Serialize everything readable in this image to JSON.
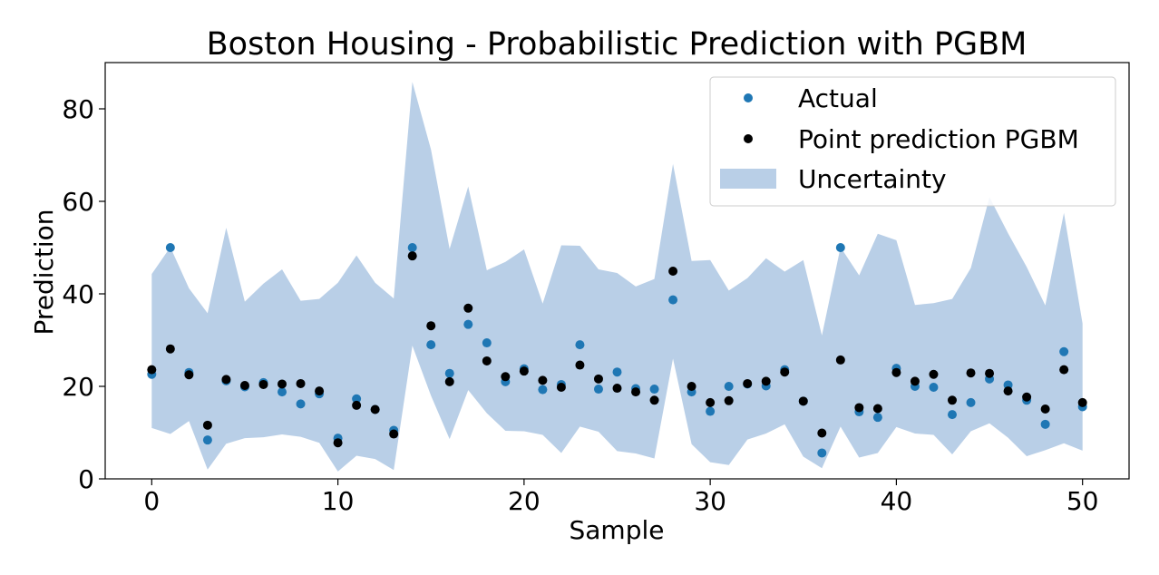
{
  "chart_data": {
    "type": "scatter",
    "title": "Boston Housing - Probabilistic Prediction with PGBM",
    "xlabel": "Sample",
    "ylabel": "Prediction",
    "xlim": [
      -2.5,
      52.5
    ],
    "ylim": [
      0,
      90
    ],
    "xticks": [
      0,
      10,
      20,
      30,
      40,
      50
    ],
    "yticks": [
      0,
      20,
      40,
      60,
      80
    ],
    "grid": false,
    "legend_position": "top-right",
    "x": [
      0,
      1,
      2,
      3,
      4,
      5,
      6,
      7,
      8,
      9,
      10,
      11,
      12,
      13,
      14,
      15,
      16,
      17,
      18,
      19,
      20,
      21,
      22,
      23,
      24,
      25,
      26,
      27,
      28,
      29,
      30,
      31,
      32,
      33,
      34,
      35,
      36,
      37,
      38,
      39,
      40,
      41,
      42,
      43,
      44,
      45,
      46,
      47,
      48,
      49,
      50
    ],
    "series": [
      {
        "name": "Uncertainty",
        "kind": "band",
        "color": "#b9cfe7",
        "lower": [
          11.0,
          9.7,
          12.5,
          2.0,
          7.6,
          8.8,
          9.0,
          9.6,
          9.1,
          7.8,
          1.6,
          5.0,
          4.3,
          1.9,
          28.8,
          18.0,
          8.6,
          19.2,
          14.2,
          10.4,
          10.3,
          9.5,
          5.6,
          11.3,
          10.2,
          6.0,
          5.5,
          4.4,
          26.0,
          7.5,
          3.6,
          3.0,
          8.5,
          9.8,
          11.8,
          4.8,
          2.3,
          11.3,
          4.6,
          5.6,
          11.2,
          9.8,
          9.5,
          5.3,
          10.3,
          12.0,
          8.9,
          4.9,
          6.2,
          7.7,
          6.1
        ],
        "upper": [
          44.3,
          50.1,
          41.2,
          35.8,
          54.3,
          38.3,
          42.2,
          45.3,
          38.5,
          38.9,
          42.4,
          48.3,
          42.4,
          39.0,
          85.8,
          71.2,
          49.7,
          63.2,
          45.1,
          46.9,
          49.6,
          37.9,
          50.5,
          50.4,
          45.3,
          44.5,
          41.6,
          43.2,
          68.1,
          47.1,
          47.3,
          40.7,
          43.4,
          47.7,
          44.8,
          47.3,
          31.0,
          50.1,
          44.0,
          53.0,
          51.6,
          37.6,
          38.0,
          38.9,
          45.6,
          60.9,
          53.1,
          45.8,
          37.5,
          57.5,
          33.6
        ]
      },
      {
        "name": "Actual",
        "kind": "points",
        "color": "#1f77b4",
        "values": [
          22.6,
          50.0,
          23.0,
          8.4,
          21.2,
          19.9,
          20.8,
          18.8,
          16.2,
          18.4,
          8.8,
          17.3,
          15.0,
          10.5,
          50.0,
          29.0,
          22.8,
          33.4,
          29.4,
          21.0,
          23.8,
          19.3,
          20.4,
          29.0,
          19.4,
          23.1,
          19.5,
          19.4,
          38.7,
          18.8,
          14.6,
          20.0,
          20.5,
          20.1,
          23.6,
          16.8,
          5.6,
          50.0,
          14.5,
          13.3,
          23.9,
          20.0,
          19.8,
          13.9,
          16.5,
          21.6,
          20.3,
          17.0,
          11.8,
          27.5,
          15.6
        ]
      },
      {
        "name": "Point prediction PGBM",
        "kind": "points",
        "color": "#000000",
        "values": [
          23.6,
          28.1,
          22.5,
          11.6,
          21.5,
          20.2,
          20.4,
          20.5,
          20.6,
          19.0,
          7.8,
          15.9,
          15.0,
          9.7,
          48.2,
          33.1,
          21.0,
          36.9,
          25.5,
          22.1,
          23.3,
          21.3,
          19.8,
          24.6,
          21.6,
          19.6,
          18.8,
          17.0,
          44.9,
          20.0,
          16.5,
          16.9,
          20.6,
          21.1,
          23.1,
          16.8,
          9.9,
          25.7,
          15.4,
          15.2,
          23.0,
          21.1,
          22.6,
          17.0,
          22.9,
          22.8,
          19.0,
          17.7,
          15.1,
          23.6,
          16.5
        ]
      }
    ]
  }
}
